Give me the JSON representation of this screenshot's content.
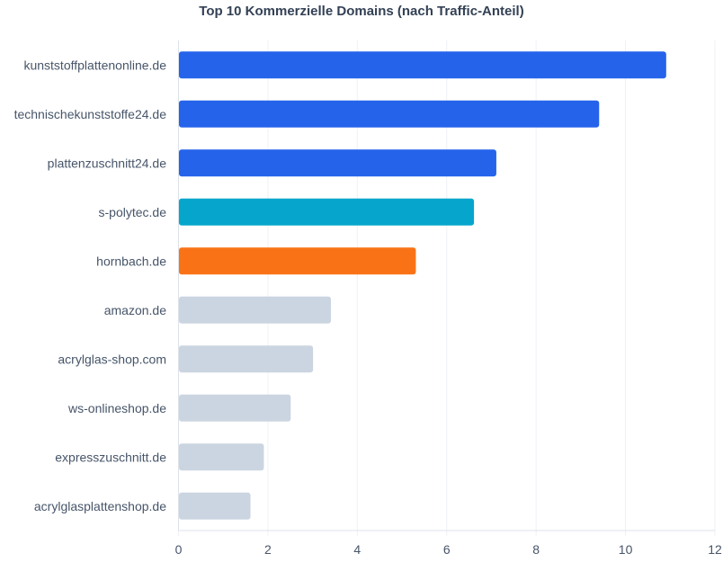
{
  "chart_data": {
    "type": "bar",
    "orientation": "horizontal",
    "title": "Top 10 Kommerzielle Domains (nach Traffic-Anteil)",
    "xlabel": "",
    "ylabel": "",
    "xlim": [
      0,
      12
    ],
    "xticks": [
      0,
      2,
      4,
      6,
      8,
      10,
      12
    ],
    "grid": true,
    "categories": [
      "kunststoffplattenonline.de",
      "technischekunststoffe24.de",
      "plattenzuschnitt24.de",
      "s-polytec.de",
      "hornbach.de",
      "amazon.de",
      "acrylglas-shop.com",
      "ws-onlineshop.de",
      "expresszuschnitt.de",
      "acrylglasplattenshop.de"
    ],
    "values": [
      10.9,
      9.4,
      7.1,
      6.6,
      5.3,
      3.4,
      3.0,
      2.5,
      1.9,
      1.6
    ],
    "colors": [
      "#2563eb",
      "#2563eb",
      "#2563eb",
      "#06a6cc",
      "#f97316",
      "#cbd5e1",
      "#cbd5e1",
      "#cbd5e1",
      "#cbd5e1",
      "#cbd5e1"
    ]
  }
}
